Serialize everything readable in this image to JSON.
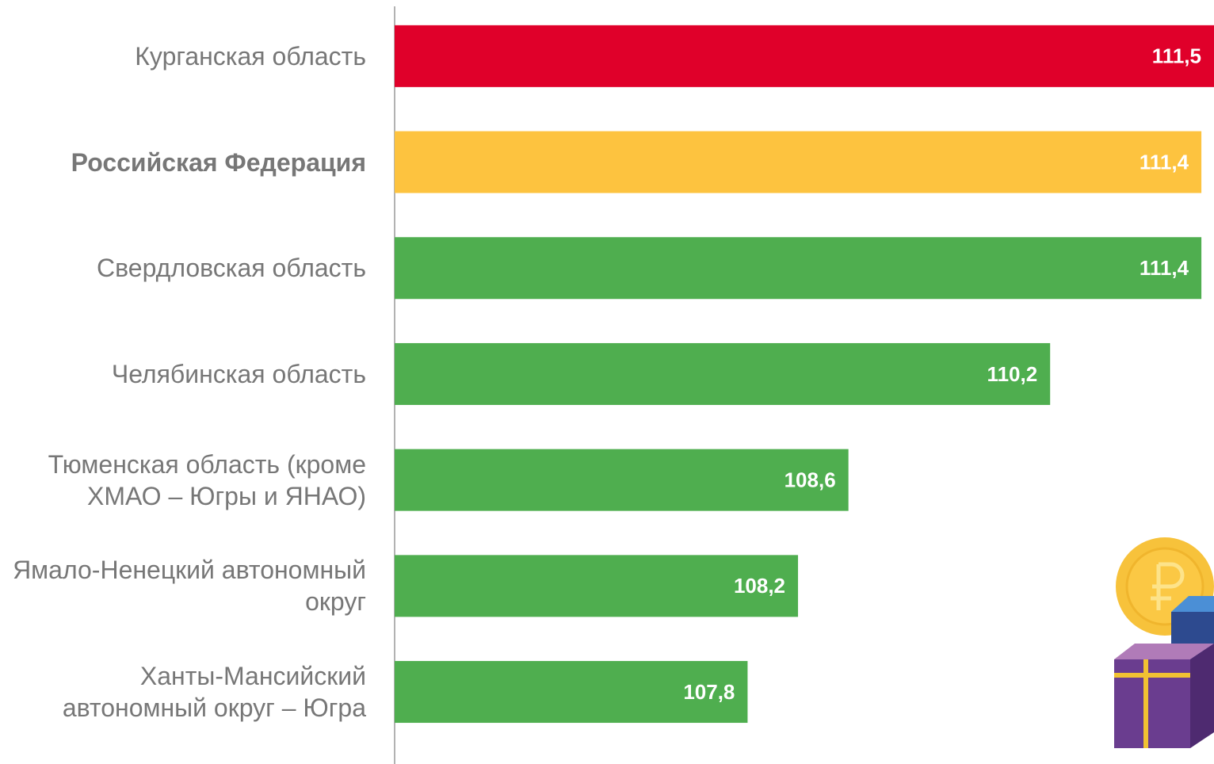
{
  "chart_data": {
    "type": "bar",
    "orientation": "horizontal",
    "categories": [
      "Курганская область",
      "Российская Федерация",
      "Свердловская область",
      "Челябинская область",
      "Тюменская область (кроме ХМАО – Югры и ЯНАО)",
      "Ямало-Ненецкий автономный округ",
      "Ханты-Мансийский автономный округ – Югра"
    ],
    "values": [
      111.5,
      111.4,
      111.4,
      110.2,
      108.6,
      108.2,
      107.8
    ],
    "value_labels": [
      "111,5",
      "111,4",
      "111,4",
      "110,2",
      "108,6",
      "108,2",
      "107,8"
    ],
    "colors": [
      "#e0002a",
      "#fdc33f",
      "#4fae4f",
      "#4fae4f",
      "#4fae4f",
      "#4fae4f",
      "#4fae4f"
    ],
    "xlim": [
      105,
      111.5
    ]
  }
}
